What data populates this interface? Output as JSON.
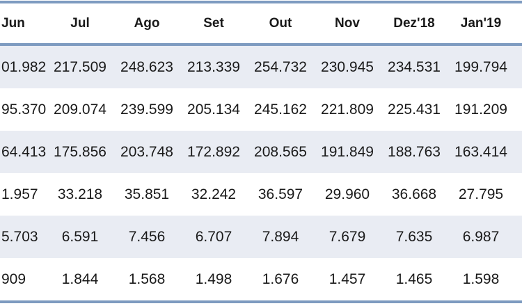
{
  "table": {
    "columns": [
      "Jun",
      "Jul",
      "Ago",
      "Set",
      "Out",
      "Nov",
      "Dez'18",
      "Jan'19"
    ],
    "rows": [
      [
        "01.982",
        "217.509",
        "248.623",
        "213.339",
        "254.732",
        "230.945",
        "234.531",
        "199.794"
      ],
      [
        "95.370",
        "209.074",
        "239.599",
        "205.134",
        "245.162",
        "221.809",
        "225.431",
        "191.209"
      ],
      [
        "64.413",
        "175.856",
        "203.748",
        "172.892",
        "208.565",
        "191.849",
        "188.763",
        "163.414"
      ],
      [
        "1.957",
        "33.218",
        "35.851",
        "32.242",
        "36.597",
        "29.960",
        "36.668",
        "27.795"
      ],
      [
        "5.703",
        "6.591",
        "7.456",
        "6.707",
        "7.894",
        "7.679",
        "7.635",
        "6.987"
      ],
      [
        "909",
        "1.844",
        "1.568",
        "1.498",
        "1.676",
        "1.457",
        "1.465",
        "1.598"
      ]
    ]
  },
  "colors": {
    "border_blue": "#7E9BC0",
    "row_stripe": "#E9ECF3",
    "row_plain": "#FFFFFF",
    "text": "#1A1A1A"
  }
}
